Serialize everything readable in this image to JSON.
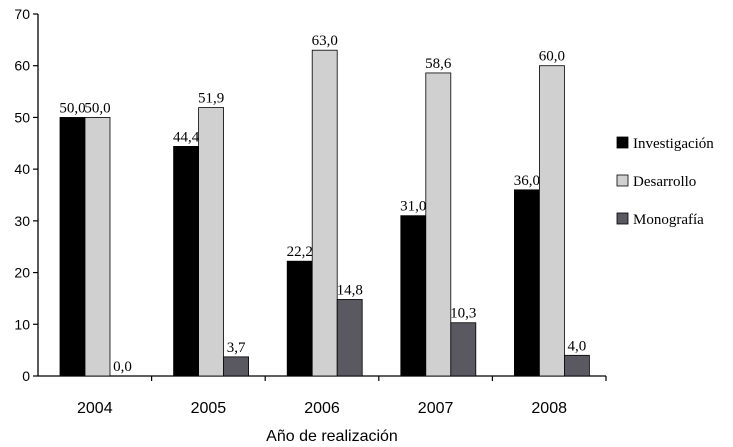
{
  "chart_data": {
    "type": "bar",
    "xlabel": "Año de realización",
    "ylabel": "",
    "ylim": [
      0,
      70
    ],
    "yticks": [
      "0",
      "10",
      "20",
      "30",
      "40",
      "50",
      "60",
      "70"
    ],
    "categories": [
      "2004",
      "2005",
      "2006",
      "2007",
      "2008"
    ],
    "legend_position": "right",
    "grid": false,
    "series": [
      {
        "name": "Investigación",
        "color": "#000000",
        "values": [
          50.0,
          44.4,
          22.2,
          31.0,
          36.0
        ],
        "labels": [
          "50,0",
          "44,4",
          "22,2",
          "31,0",
          "36,0"
        ]
      },
      {
        "name": "Desarrollo",
        "color": "#d0d0d0",
        "values": [
          50.0,
          51.9,
          63.0,
          58.6,
          60.0
        ],
        "labels": [
          "50,0",
          "51,9",
          "63,0",
          "58,6",
          "60,0"
        ]
      },
      {
        "name": "Monografía",
        "color": "#5a5860",
        "values": [
          0.0,
          3.7,
          14.8,
          10.3,
          4.0
        ],
        "labels": [
          "0,0",
          "3,7",
          "14,8",
          "10,3",
          "4,0"
        ]
      }
    ]
  }
}
